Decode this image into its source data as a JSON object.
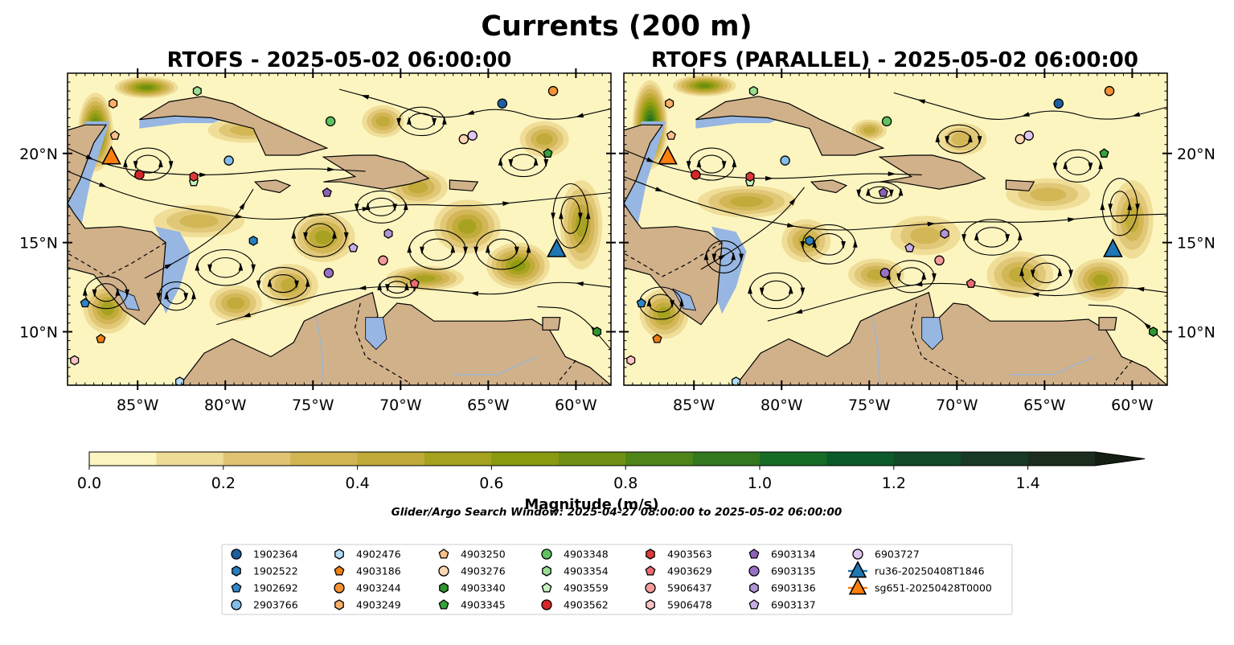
{
  "suptitle": "Currents (200 m)",
  "panels": [
    {
      "title": "RTOFS - 2025-05-02 06:00:00"
    },
    {
      "title": "RTOFS (PARALLEL) - 2025-05-02 06:00:00"
    }
  ],
  "colorbar": {
    "label": "Magnitude (m/s)",
    "ticks": [
      "0.0",
      "0.2",
      "0.4",
      "0.6",
      "0.8",
      "1.0",
      "1.2",
      "1.4"
    ],
    "colors": [
      "#fcf5c0",
      "#eedb94",
      "#dfc474",
      "#d1b552",
      "#bfaa38",
      "#a4a21e",
      "#8a9a0f",
      "#6e8f12",
      "#4f8419",
      "#33781f",
      "#166b25",
      "#0b5a29",
      "#124a2a",
      "#183926",
      "#1c2c1d",
      "#151e12"
    ]
  },
  "search_window": "Glider/Argo Search Window: 2025-04-27 08:00:00 to 2025-05-02 06:00:00",
  "chart_data": {
    "type": "scatter",
    "map_extent": {
      "lon": [
        -89,
        -58
      ],
      "lat": [
        7,
        24.5
      ]
    },
    "x_ticks": [
      "85°W",
      "80°W",
      "75°W",
      "70°W",
      "65°W",
      "60°W"
    ],
    "y_ticks": [
      "10°N",
      "15°N",
      "20°N"
    ],
    "variable": "current magnitude (m/s)",
    "color_range": [
      0,
      1.5
    ],
    "legend": [
      {
        "name": "1902364",
        "marker": "circle",
        "color": "#1f5fa0"
      },
      {
        "name": "1902522",
        "marker": "hexagon",
        "color": "#2a7fbe"
      },
      {
        "name": "1902692",
        "marker": "pentagon",
        "color": "#2f86c8"
      },
      {
        "name": "2903766",
        "marker": "circle",
        "color": "#83bdea"
      },
      {
        "name": "4902476",
        "marker": "hexagon",
        "color": "#b3dcf5"
      },
      {
        "name": "4903186",
        "marker": "pentagon",
        "color": "#f07f14"
      },
      {
        "name": "4903244",
        "marker": "circle",
        "color": "#f59233"
      },
      {
        "name": "4903249",
        "marker": "hexagon",
        "color": "#fbaf66"
      },
      {
        "name": "4903250",
        "marker": "pentagon",
        "color": "#fbbf8a"
      },
      {
        "name": "4903276",
        "marker": "circle",
        "color": "#fdd7b3"
      },
      {
        "name": "4903340",
        "marker": "hexagon",
        "color": "#2e9630"
      },
      {
        "name": "4903345",
        "marker": "pentagon",
        "color": "#36a33a"
      },
      {
        "name": "4903348",
        "marker": "circle",
        "color": "#5fc25f"
      },
      {
        "name": "4903354",
        "marker": "hexagon",
        "color": "#98dd90"
      },
      {
        "name": "4903559",
        "marker": "pentagon",
        "color": "#c6f2bd"
      },
      {
        "name": "4903562",
        "marker": "circle",
        "color": "#d62728"
      },
      {
        "name": "4903563",
        "marker": "hexagon",
        "color": "#de3a3a"
      },
      {
        "name": "4903629",
        "marker": "pentagon",
        "color": "#ec6a72"
      },
      {
        "name": "5906437",
        "marker": "circle",
        "color": "#f39a9a"
      },
      {
        "name": "5906478",
        "marker": "hexagon",
        "color": "#fcc4c4"
      },
      {
        "name": "6903134",
        "marker": "pentagon",
        "color": "#8c62b8"
      },
      {
        "name": "6903135",
        "marker": "circle",
        "color": "#9a70c6"
      },
      {
        "name": "6903136",
        "marker": "hexagon",
        "color": "#b195d6"
      },
      {
        "name": "6903137",
        "marker": "pentagon",
        "color": "#c8b0e6"
      },
      {
        "name": "6903727",
        "marker": "circle",
        "color": "#e2c6f2"
      },
      {
        "name": "ru36-20250408T1846",
        "marker": "triangle-line",
        "color": "#1f77b4"
      },
      {
        "name": "sg651-20250428T0000",
        "marker": "triangle-line",
        "color": "#ff7f0e"
      }
    ],
    "points": [
      {
        "name": "1902364",
        "lon": -64.2,
        "lat": 22.8
      },
      {
        "name": "1902522",
        "lon": -78.4,
        "lat": 15.1
      },
      {
        "name": "1902692",
        "lon": -88.0,
        "lat": 11.6
      },
      {
        "name": "2903766",
        "lon": -79.8,
        "lat": 19.6
      },
      {
        "name": "4902476",
        "lon": -82.6,
        "lat": 7.2
      },
      {
        "name": "4903186",
        "lon": -87.1,
        "lat": 9.6
      },
      {
        "name": "4903244",
        "lon": -61.3,
        "lat": 23.5
      },
      {
        "name": "4903249",
        "lon": -86.4,
        "lat": 22.8
      },
      {
        "name": "4903250",
        "lon": -86.3,
        "lat": 21.0
      },
      {
        "name": "4903276",
        "lon": -66.4,
        "lat": 20.8
      },
      {
        "name": "4903340",
        "lon": -58.8,
        "lat": 10.0
      },
      {
        "name": "4903345",
        "lon": -61.6,
        "lat": 20.0
      },
      {
        "name": "4903348",
        "lon": -74.0,
        "lat": 21.8
      },
      {
        "name": "4903354",
        "lon": -81.6,
        "lat": 23.5
      },
      {
        "name": "4903559",
        "lon": -81.8,
        "lat": 18.4
      },
      {
        "name": "4903562",
        "lon": -84.9,
        "lat": 18.8
      },
      {
        "name": "4903563",
        "lon": -81.8,
        "lat": 18.7
      },
      {
        "name": "4903629",
        "lon": -69.2,
        "lat": 12.7
      },
      {
        "name": "5906437",
        "lon": -71.0,
        "lat": 14.0
      },
      {
        "name": "5906478",
        "lon": -88.6,
        "lat": 8.4
      },
      {
        "name": "6903134",
        "lon": -74.2,
        "lat": 17.8
      },
      {
        "name": "6903135",
        "lon": -74.1,
        "lat": 13.3
      },
      {
        "name": "6903136",
        "lon": -70.7,
        "lat": 15.5
      },
      {
        "name": "6903137",
        "lon": -72.7,
        "lat": 14.7
      },
      {
        "name": "6903727",
        "lon": -65.9,
        "lat": 21.0
      },
      {
        "name": "ru36-20250408T1846",
        "lon": -61.1,
        "lat": 14.6
      },
      {
        "name": "sg651-20250428T0000",
        "lon": -86.5,
        "lat": 19.8
      }
    ]
  }
}
